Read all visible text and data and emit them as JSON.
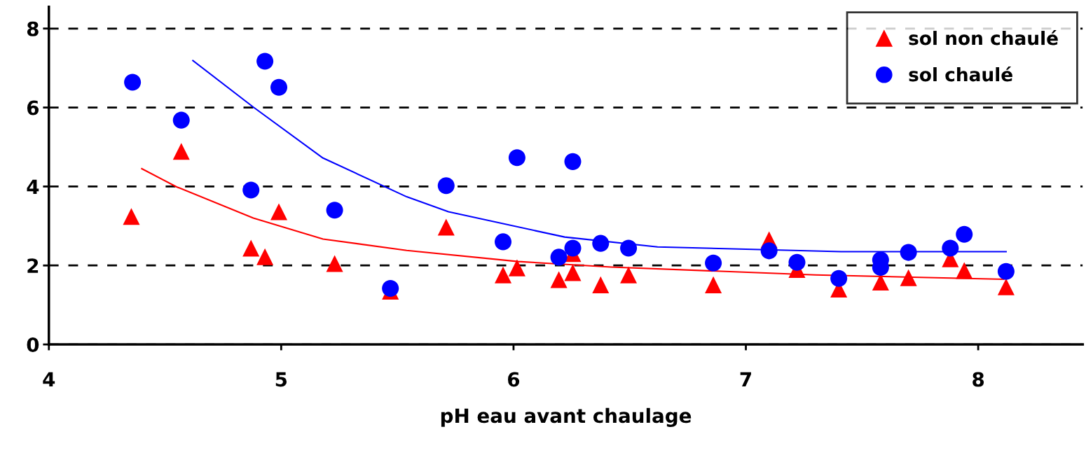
{
  "chart_data": {
    "type": "scatter",
    "xlabel": "pH eau avant chaulage",
    "xlim": [
      4,
      8.45
    ],
    "xticks": [
      4,
      5,
      6,
      7,
      8
    ],
    "ylim": [
      0,
      8.55
    ],
    "yticks": [
      0,
      2,
      4,
      6,
      8
    ],
    "grid": "y",
    "legend": "top right",
    "series": [
      {
        "name": "sol non chaulé",
        "color": "#ff0000",
        "marker": "triangle",
        "x": [
          4.355,
          4.57,
          4.87,
          4.93,
          4.99,
          5.23,
          5.47,
          5.71,
          5.955,
          6.015,
          6.195,
          6.255,
          6.255,
          6.375,
          6.495,
          6.86,
          7.1,
          7.22,
          7.4,
          7.58,
          7.7,
          7.88,
          7.94,
          8.12
        ],
        "values": [
          3.24,
          4.89,
          2.44,
          2.22,
          3.36,
          2.05,
          1.35,
          2.97,
          1.76,
          1.94,
          1.64,
          1.82,
          2.3,
          1.51,
          1.76,
          1.51,
          2.65,
          1.9,
          1.4,
          1.58,
          1.69,
          2.17,
          1.87,
          1.46
        ]
      },
      {
        "name": "sol chaulé",
        "color": "#0000ff",
        "marker": "circle",
        "x": [
          4.36,
          4.57,
          4.87,
          4.93,
          4.99,
          5.23,
          5.47,
          5.71,
          5.955,
          6.015,
          6.195,
          6.255,
          6.255,
          6.375,
          6.495,
          6.86,
          7.1,
          7.22,
          7.4,
          7.58,
          7.58,
          7.7,
          7.88,
          7.94,
          8.12
        ],
        "values": [
          6.64,
          5.68,
          3.91,
          7.17,
          6.51,
          3.4,
          1.42,
          4.02,
          2.6,
          4.73,
          2.21,
          2.44,
          4.63,
          2.56,
          2.44,
          2.06,
          2.37,
          2.08,
          1.67,
          2.14,
          1.95,
          2.33,
          2.44,
          2.79,
          1.85
        ]
      },
      {
        "type": "line",
        "color": "#ff0000",
        "x": [
          4.4,
          4.55,
          4.88,
          5.18,
          5.54,
          6.02,
          6.42,
          7.3,
          8.11
        ],
        "values": [
          4.45,
          3.99,
          3.2,
          2.67,
          2.38,
          2.1,
          1.96,
          1.76,
          1.65
        ]
      },
      {
        "type": "line",
        "color": "#0000ff",
        "x": [
          4.62,
          4.88,
          5.18,
          5.54,
          5.72,
          6.22,
          6.62,
          7.41,
          8.12
        ],
        "values": [
          7.19,
          6.01,
          4.72,
          3.74,
          3.36,
          2.72,
          2.47,
          2.35,
          2.35
        ]
      }
    ]
  }
}
